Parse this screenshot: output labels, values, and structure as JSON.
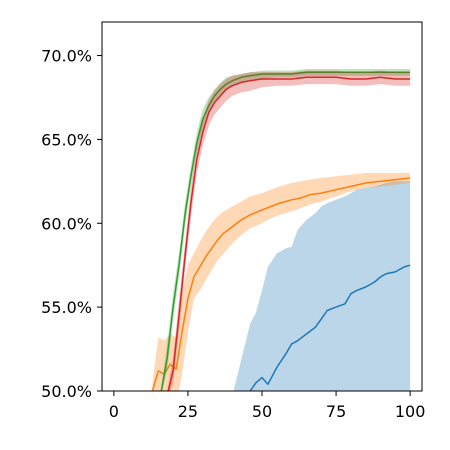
{
  "chart_data": {
    "type": "line",
    "title": "",
    "xlabel": "",
    "ylabel": "",
    "xlim": [
      -4,
      104
    ],
    "ylim": [
      50,
      72
    ],
    "x_ticks": [
      0,
      25,
      50,
      75,
      100
    ],
    "x_tick_labels": [
      "0",
      "25",
      "50",
      "75",
      "100"
    ],
    "y_ticks": [
      50,
      55,
      60,
      65,
      70
    ],
    "y_tick_labels": [
      "50.0%",
      "55.0%",
      "60.0%",
      "65.0%",
      "70.0%"
    ],
    "grid": false,
    "legend": "none",
    "series": [
      {
        "color": "#1f77b4",
        "x": [
          39,
          46,
          48,
          50,
          52,
          55,
          58,
          60,
          62,
          65,
          68,
          70,
          72,
          75,
          78,
          80,
          82,
          85,
          88,
          90,
          92,
          95,
          98,
          100
        ],
        "y": [
          49.0,
          50.0,
          50.5,
          50.8,
          50.4,
          51.4,
          52.2,
          52.8,
          53.0,
          53.4,
          53.8,
          54.3,
          54.8,
          55.0,
          55.2,
          55.8,
          56.0,
          56.2,
          56.5,
          56.8,
          57.0,
          57.1,
          57.4,
          57.5
        ],
        "lower": [
          49.0,
          49.0,
          49.0,
          49.0,
          49.0,
          49.0,
          49.0,
          49.0,
          49.0,
          49.0,
          49.0,
          49.0,
          49.0,
          49.0,
          49.0,
          49.0,
          49.0,
          49.0,
          49.0,
          49.0,
          49.0,
          49.0,
          49.0,
          49.0
        ],
        "upper": [
          49.0,
          54.0,
          54.7,
          56.0,
          57.4,
          58.2,
          58.5,
          58.6,
          59.6,
          60.2,
          60.6,
          61.0,
          61.2,
          61.4,
          61.6,
          61.8,
          62.0,
          62.1,
          62.2,
          62.3,
          62.4,
          62.5,
          62.5,
          62.5
        ]
      },
      {
        "color": "#ff7f0e",
        "x": [
          13,
          15,
          17,
          19,
          21,
          23,
          25,
          27,
          29,
          31,
          33,
          35,
          37,
          40,
          43,
          46,
          50,
          53,
          56,
          60,
          63,
          66,
          70,
          75,
          80,
          85,
          90,
          95,
          100
        ],
        "y": [
          50.0,
          51.2,
          51.0,
          51.6,
          51.3,
          53.5,
          55.5,
          56.8,
          57.4,
          58.0,
          58.5,
          59.0,
          59.4,
          59.8,
          60.2,
          60.5,
          60.8,
          61.0,
          61.2,
          61.4,
          61.5,
          61.7,
          61.8,
          62.0,
          62.2,
          62.4,
          62.5,
          62.6,
          62.7
        ],
        "lower": [
          49.0,
          49.0,
          49.0,
          49.0,
          49.0,
          51.0,
          53.5,
          55.5,
          56.0,
          56.6,
          57.2,
          57.8,
          58.2,
          58.8,
          59.3,
          59.7,
          60.0,
          60.3,
          60.5,
          60.7,
          60.9,
          61.1,
          61.3,
          61.6,
          61.9,
          62.1,
          62.2,
          62.3,
          62.4
        ],
        "upper": [
          50.5,
          53.2,
          53.0,
          53.4,
          53.2,
          55.8,
          57.5,
          58.2,
          58.9,
          59.5,
          60.0,
          60.4,
          60.7,
          61.0,
          61.3,
          61.6,
          61.8,
          62.0,
          62.2,
          62.4,
          62.5,
          62.6,
          62.7,
          62.8,
          62.9,
          63.0,
          63.0,
          63.0,
          63.0
        ]
      },
      {
        "color": "#2ca02c",
        "x": [
          15,
          18,
          20,
          22,
          24,
          26,
          28,
          30,
          32,
          34,
          36,
          38,
          40,
          43,
          46,
          50,
          55,
          60,
          65,
          70,
          75,
          80,
          85,
          90,
          95,
          100
        ],
        "y": [
          49.0,
          52.0,
          55.0,
          57.5,
          60.5,
          62.8,
          64.8,
          66.2,
          67.0,
          67.6,
          68.0,
          68.3,
          68.5,
          68.7,
          68.8,
          68.9,
          68.9,
          68.9,
          69.0,
          69.0,
          69.0,
          69.0,
          69.0,
          69.0,
          69.0,
          69.0
        ],
        "lower": [
          49.0,
          51.2,
          54.2,
          56.8,
          59.8,
          62.2,
          64.2,
          65.6,
          66.5,
          67.2,
          67.6,
          67.9,
          68.2,
          68.4,
          68.5,
          68.6,
          68.7,
          68.7,
          68.8,
          68.8,
          68.8,
          68.8,
          68.8,
          68.8,
          68.8,
          68.8
        ],
        "upper": [
          49.0,
          52.8,
          55.8,
          58.2,
          61.2,
          63.4,
          65.4,
          66.8,
          67.5,
          68.0,
          68.4,
          68.7,
          68.8,
          68.9,
          69.0,
          69.1,
          69.1,
          69.1,
          69.2,
          69.2,
          69.2,
          69.2,
          69.2,
          69.2,
          69.2,
          69.2
        ]
      },
      {
        "color": "#d62728",
        "x": [
          17,
          20,
          22,
          24,
          26,
          28,
          30,
          32,
          34,
          36,
          38,
          40,
          43,
          46,
          50,
          55,
          60,
          65,
          70,
          75,
          80,
          85,
          90,
          95,
          100
        ],
        "y": [
          49.0,
          51.2,
          54.5,
          58.0,
          61.2,
          63.8,
          65.4,
          66.6,
          67.2,
          67.6,
          68.0,
          68.2,
          68.4,
          68.5,
          68.6,
          68.6,
          68.6,
          68.7,
          68.7,
          68.7,
          68.6,
          68.6,
          68.7,
          68.6,
          68.6
        ],
        "lower": [
          49.0,
          50.4,
          53.6,
          57.2,
          60.3,
          63.0,
          64.6,
          65.8,
          66.5,
          66.9,
          67.3,
          67.6,
          67.8,
          67.9,
          68.1,
          68.2,
          68.2,
          68.3,
          68.3,
          68.3,
          68.2,
          68.2,
          68.3,
          68.2,
          68.2
        ],
        "upper": [
          49.0,
          52.0,
          55.4,
          58.8,
          62.1,
          64.6,
          66.2,
          67.3,
          67.9,
          68.3,
          68.6,
          68.8,
          68.9,
          69.0,
          69.0,
          69.0,
          69.0,
          69.1,
          69.1,
          69.1,
          69.0,
          69.0,
          69.1,
          69.0,
          69.0
        ]
      }
    ]
  }
}
